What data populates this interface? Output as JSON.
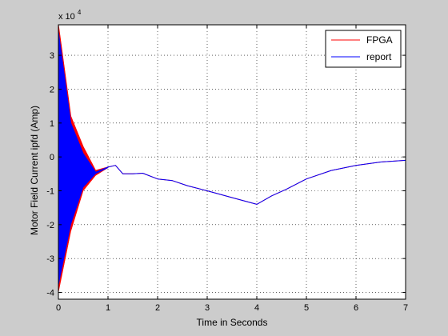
{
  "chart_data": {
    "type": "line",
    "title": "",
    "xlabel": "Time in Seconds",
    "ylabel": "Motor Field Current ipfd (Amp)",
    "y_exponent_label": "x 10",
    "y_exponent_power": "4",
    "xlim": [
      0,
      7
    ],
    "ylim": [
      -4.2,
      3.9
    ],
    "x_ticks": [
      "0",
      "1",
      "2",
      "3",
      "4",
      "5",
      "6",
      "7"
    ],
    "y_ticks": [
      "-4",
      "-3",
      "-2",
      "-1",
      "0",
      "1",
      "2",
      "3"
    ],
    "grid": true,
    "legend_position": "top-right",
    "series": [
      {
        "name": "FPGA",
        "color": "#ff0000",
        "x": [
          0,
          0.25,
          0.5,
          0.75,
          1.0,
          1.15,
          1.3,
          1.5,
          1.7,
          2.0,
          2.3,
          2.6,
          3.0,
          3.5,
          4.0,
          4.3,
          4.6,
          5.0,
          5.5,
          6.0,
          6.5,
          7.0
        ],
        "y": [
          3.9,
          1.2,
          0.3,
          -0.4,
          -0.3,
          -0.25,
          -0.5,
          -0.5,
          -0.48,
          -0.65,
          -0.7,
          -0.85,
          -1.0,
          -1.2,
          -1.4,
          -1.15,
          -0.95,
          -0.65,
          -0.4,
          -0.25,
          -0.15,
          -0.1
        ],
        "envelope_upper": [
          3.9,
          1.2,
          0.3,
          -0.4,
          -0.3
        ],
        "envelope_lower": [
          -4.0,
          -2.2,
          -1.0,
          -0.55,
          -0.32
        ]
      },
      {
        "name": "report",
        "color": "#0000ff",
        "x": [
          0,
          0.25,
          0.5,
          0.75,
          1.0,
          1.15,
          1.3,
          1.5,
          1.7,
          2.0,
          2.3,
          2.6,
          3.0,
          3.5,
          4.0,
          4.3,
          4.6,
          5.0,
          5.5,
          6.0,
          6.5,
          7.0
        ],
        "y": [
          3.7,
          1.0,
          0.1,
          -0.45,
          -0.3,
          -0.25,
          -0.5,
          -0.5,
          -0.48,
          -0.65,
          -0.7,
          -0.85,
          -1.0,
          -1.2,
          -1.4,
          -1.15,
          -0.95,
          -0.65,
          -0.4,
          -0.25,
          -0.15,
          -0.1
        ],
        "envelope_upper": [
          3.7,
          1.0,
          0.1,
          -0.45,
          -0.3
        ],
        "envelope_lower": [
          -3.8,
          -2.0,
          -0.9,
          -0.5,
          -0.32
        ]
      }
    ]
  }
}
